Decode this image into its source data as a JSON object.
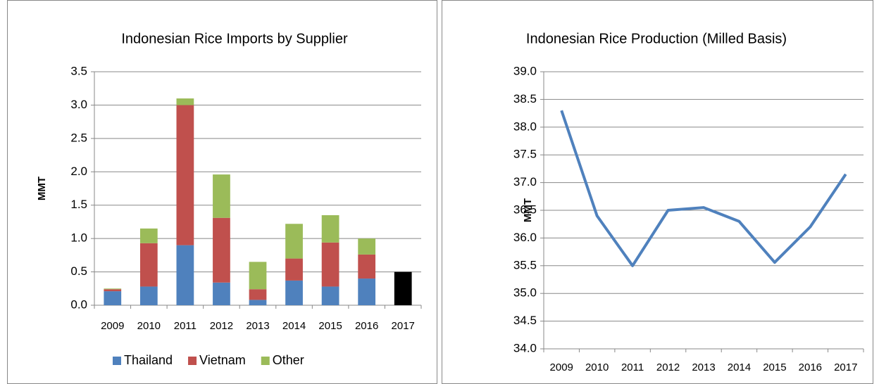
{
  "chart_data": [
    {
      "type": "bar",
      "title": "Indonesian Rice Imports by Supplier",
      "y_label": "MMT",
      "stacked": true,
      "categories": [
        "2009",
        "2010",
        "2011",
        "2012",
        "2013",
        "2014",
        "2015",
        "2016",
        "2017"
      ],
      "series": [
        {
          "name": "Thailand",
          "color": "#4f81bd",
          "values": [
            0.21,
            0.28,
            0.9,
            0.34,
            0.08,
            0.37,
            0.28,
            0.4,
            null
          ]
        },
        {
          "name": "Vietnam",
          "color": "#c0504d",
          "values": [
            0.03,
            0.65,
            2.1,
            0.97,
            0.16,
            0.33,
            0.66,
            0.36,
            null
          ]
        },
        {
          "name": "Other",
          "color": "#9bbb59",
          "values": [
            0.01,
            0.22,
            0.1,
            0.65,
            0.41,
            0.52,
            0.41,
            0.24,
            null
          ]
        },
        {
          "color": "#000000",
          "values": [
            null,
            null,
            null,
            null,
            null,
            null,
            null,
            null,
            0.5
          ]
        }
      ],
      "ylim": [
        0,
        3.5
      ],
      "yticks": [
        {
          "value": 0,
          "label": "0.0"
        },
        {
          "value": 0.5,
          "label": "0.5"
        },
        {
          "value": 1,
          "label": "1.0"
        },
        {
          "value": 1.5,
          "label": "1.5"
        },
        {
          "value": 2,
          "label": "2.0"
        },
        {
          "value": 2.5,
          "label": "2.5"
        },
        {
          "value": 3,
          "label": "3.0"
        },
        {
          "value": 3.5,
          "label": "3.5"
        }
      ],
      "grid": true,
      "legend": "bottom"
    },
    {
      "type": "line",
      "title": "Indonesian Rice Production (Milled Basis)",
      "y_label": "MMT",
      "categories": [
        "2009",
        "2010",
        "2011",
        "2012",
        "2013",
        "2014",
        "2015",
        "2016",
        "2017"
      ],
      "series": [
        {
          "color": "#4f81bd",
          "values": [
            38.3,
            36.4,
            35.5,
            36.5,
            36.55,
            36.3,
            35.56,
            36.2,
            37.15
          ]
        }
      ],
      "ylim": [
        34,
        39
      ],
      "yticks": [
        {
          "value": 34,
          "label": "34.0"
        },
        {
          "value": 34.5,
          "label": "34.5"
        },
        {
          "value": 35,
          "label": "35.0"
        },
        {
          "value": 35.5,
          "label": "35.5"
        },
        {
          "value": 36,
          "label": "36.0"
        },
        {
          "value": 36.5,
          "label": "36.5"
        },
        {
          "value": 37,
          "label": "37.0"
        },
        {
          "value": 37.5,
          "label": "37.5"
        },
        {
          "value": 38,
          "label": "38.0"
        },
        {
          "value": 38.5,
          "label": "38.5"
        },
        {
          "value": 39,
          "label": "39.0"
        }
      ],
      "grid": true
    }
  ]
}
